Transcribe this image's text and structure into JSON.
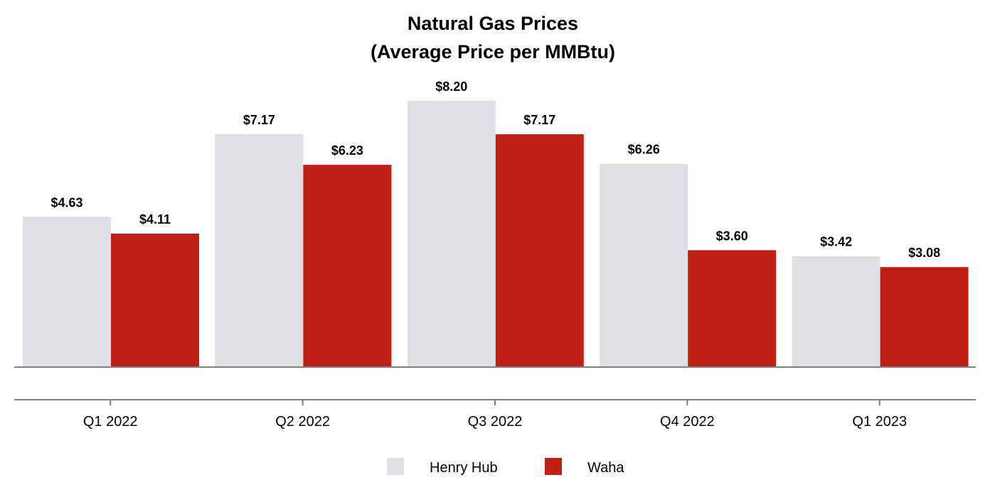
{
  "chart_data": {
    "type": "bar",
    "title": "Natural Gas Prices",
    "subtitle": "(Average Price per MMBtu)",
    "categories": [
      "Q1 2022",
      "Q2 2022",
      "Q3 2022",
      "Q4 2022",
      "Q1 2023"
    ],
    "series": [
      {
        "name": "Henry Hub",
        "color": "#dfe0e5",
        "values": [
          4.63,
          7.17,
          8.2,
          6.26,
          3.42
        ],
        "labels": [
          "$4.63",
          "$7.17",
          "$8.20",
          "$6.26",
          "$3.42"
        ]
      },
      {
        "name": "Waha",
        "color": "#bf2117",
        "values": [
          4.11,
          6.23,
          7.17,
          3.6,
          3.08
        ],
        "labels": [
          "$4.11",
          "$6.23",
          "$7.17",
          "$3.60",
          "$3.08"
        ]
      }
    ],
    "ylim": [
      0,
      8.2
    ],
    "xlabel": "",
    "ylabel": "",
    "grid": false,
    "legend": "bottom-center",
    "axis_color": "#808080"
  }
}
